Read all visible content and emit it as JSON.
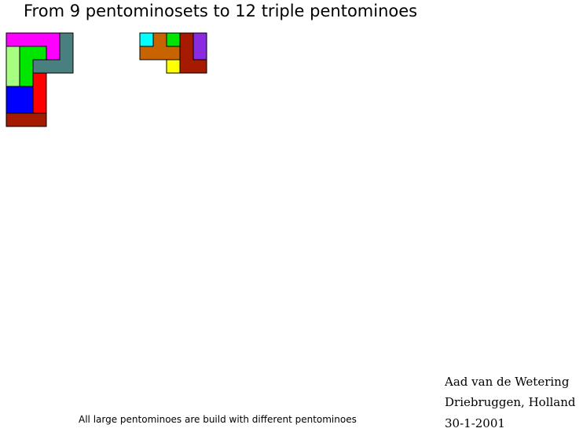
{
  "title": "From 9 pentominosets to 12 triple pentominoes",
  "note": "All large pentominoes are build with different pentominoes",
  "author": "Aad van de Wetering",
  "place": "Driebruggen, Holland",
  "date": "30-1-2001",
  "colors": {
    "magenta": "#ff00ff",
    "teal": "#4a7f7f",
    "lightgreen": "#a6ff80",
    "green": "#00e600",
    "red": "#ff0000",
    "darkred": "#a61a00",
    "blue": "#0000ff",
    "cyan": "#00ffff",
    "orange": "#c86400",
    "yellow": "#ffff00",
    "purple": "#8a2be2",
    "outline": "#000000"
  },
  "figures": [
    {
      "name": "triple-pentomino-1",
      "cells": [
        [
          "magenta",
          "magenta",
          "magenta",
          "magenta",
          "teal"
        ],
        [
          "lightgreen",
          "green",
          "green",
          "magenta",
          "teal"
        ],
        [
          "lightgreen",
          "green",
          "teal",
          "teal",
          "teal"
        ],
        [
          "lightgreen",
          "green",
          "red",
          "",
          ""
        ],
        [
          "blue",
          "blue",
          "red",
          "",
          ""
        ],
        [
          "blue",
          "blue",
          "red",
          "",
          ""
        ],
        [
          "darkred",
          "darkred",
          "darkred",
          "",
          ""
        ]
      ]
    },
    {
      "name": "triple-pentomino-2",
      "cells": [
        [
          "cyan",
          "orange",
          "green",
          "darkred",
          "purple"
        ],
        [
          "orange",
          "orange",
          "orange",
          "darkred",
          "purple"
        ],
        [
          "",
          "",
          "yellow",
          "darkred",
          "darkred"
        ]
      ]
    }
  ]
}
